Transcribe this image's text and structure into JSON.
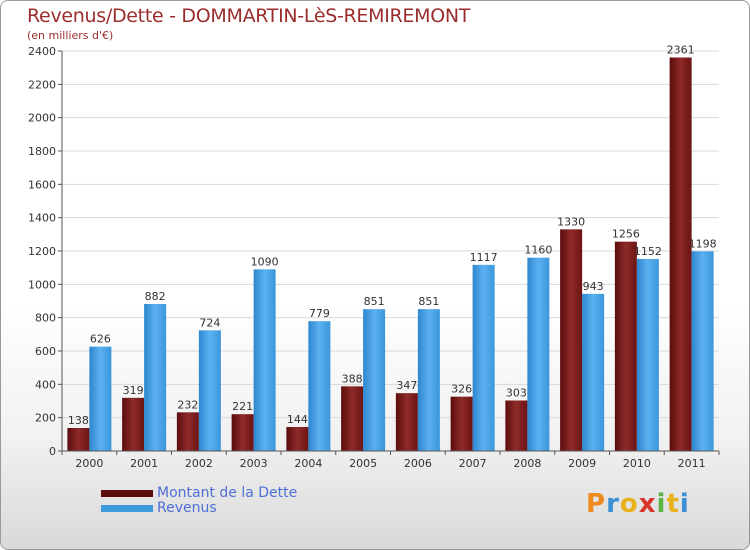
{
  "title": "Revenus/Dette - DOMMARTIN-LèS-REMIREMONT",
  "subtitle": "(en milliers d'€)",
  "logo": {
    "text": "Proxiti",
    "letters": [
      "P",
      "r",
      "o",
      "x",
      "i",
      "t",
      "i"
    ],
    "colors": [
      "#f08a1c",
      "#3b8fd4",
      "#e8b21a",
      "#d9342b",
      "#5cb346",
      "#e8b21a",
      "#3b8fd4"
    ]
  },
  "chart_data": {
    "type": "bar",
    "title": "Revenus/Dette - DOMMARTIN-LèS-REMIREMONT",
    "ylabel": "(en milliers d'€)",
    "xlabel": "",
    "ylim": [
      0,
      2400
    ],
    "yticks": [
      0,
      200,
      400,
      600,
      800,
      1000,
      1200,
      1400,
      1600,
      1800,
      2000,
      2200,
      2400
    ],
    "categories": [
      "2000",
      "2001",
      "2002",
      "2003",
      "2004",
      "2005",
      "2006",
      "2007",
      "2008",
      "2009",
      "2010",
      "2011"
    ],
    "series": [
      {
        "name": "Montant de la Dette",
        "color": "#7a1c1c",
        "values": [
          138,
          319,
          232,
          221,
          144,
          388,
          347,
          326,
          303,
          1330,
          1256,
          2361
        ]
      },
      {
        "name": "Revenus",
        "color": "#3e9be0",
        "values": [
          626,
          882,
          724,
          1090,
          779,
          851,
          851,
          1117,
          1160,
          943,
          1152,
          1198
        ]
      }
    ],
    "legend": {
      "position": "bottom-left"
    },
    "grid": true
  }
}
